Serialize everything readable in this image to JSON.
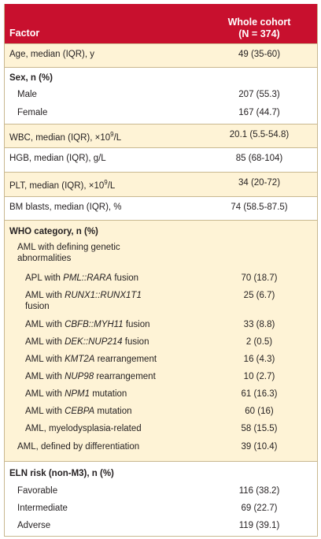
{
  "header": {
    "factor": "Factor",
    "col_line1": "Whole cohort",
    "col_line2": "(N = 374)"
  },
  "age": {
    "label": "Age, median (IQR), y",
    "value": "49 (35-60)"
  },
  "sex": {
    "title": "Sex, n (%)",
    "male": {
      "label": "Male",
      "value": "207 (55.3)"
    },
    "female": {
      "label": "Female",
      "value": "167 (44.7)"
    }
  },
  "wbc": {
    "pre": "WBC, median (IQR), ×10",
    "sup": "9",
    "post": "/L",
    "value": "20.1 (5.5-54.8)"
  },
  "hgb": {
    "label": "HGB, median (IQR), g/L",
    "value": "85 (68-104)"
  },
  "plt": {
    "pre": "PLT, median (IQR), ×10",
    "sup": "9",
    "post": "/L",
    "value": "34 (20-72)"
  },
  "blasts": {
    "label": "BM blasts, median (IQR), %",
    "value": "74 (58.5-87.5)"
  },
  "who": {
    "title": "WHO category, n (%)",
    "defining": "AML with defining genetic abnormalities",
    "apl": {
      "pre": "APL with ",
      "gene": "PML::RARA",
      "post": " fusion",
      "value": "70 (18.7)"
    },
    "runx1": {
      "pre": "AML with ",
      "gene": "RUNX1::RUNX1T1",
      "post": " fusion",
      "value": "25 (6.7)"
    },
    "cbfb": {
      "pre": "AML with ",
      "gene": "CBFB::MYH11",
      "post": " fusion",
      "value": "33 (8.8)"
    },
    "dek": {
      "pre": "AML with ",
      "gene": "DEK::NUP214",
      "post": " fusion",
      "value": "2 (0.5)"
    },
    "kmt2a": {
      "pre": "AML with ",
      "gene": "KMT2A",
      "post": " rearrangement",
      "value": "16 (4.3)"
    },
    "nup98": {
      "pre": "AML with ",
      "gene": "NUP98",
      "post": " rearrangement",
      "value": "10 (2.7)"
    },
    "npm1": {
      "pre": "AML with ",
      "gene": "NPM1",
      "post": " mutation",
      "value": "61 (16.3)"
    },
    "cebpa": {
      "pre": "AML with ",
      "gene": "CEBPA",
      "post": " mutation",
      "value": "60 (16)"
    },
    "mds": {
      "label": "AML, myelodysplasia-related",
      "value": "58 (15.5)"
    },
    "diff": {
      "label": "AML, defined by differentiation",
      "value": "39 (10.4)"
    }
  },
  "eln": {
    "title": "ELN risk (non-M3), n (%)",
    "favorable": {
      "label": "Favorable",
      "value": "116 (38.2)"
    },
    "intermediate": {
      "label": "Intermediate",
      "value": "69 (22.7)"
    },
    "adverse": {
      "label": "Adverse",
      "value": "119 (39.1)"
    }
  }
}
